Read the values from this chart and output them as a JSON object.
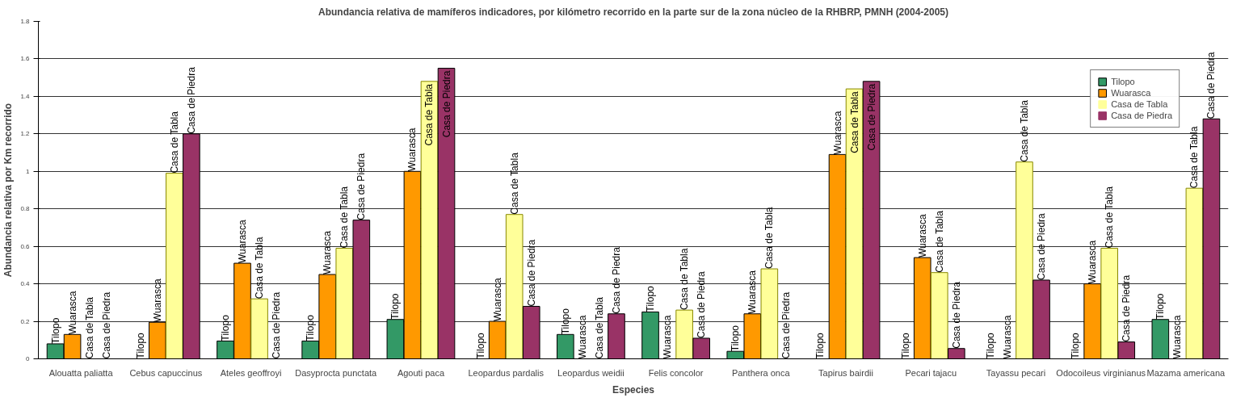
{
  "chart_data": {
    "type": "bar",
    "title": "Abundancia relativa de mamíferos indicadores, por kilómetro recorrido en la parte sur de la zona núcleo de la RHBRP, PMNH (2004-2005)",
    "xlabel": "Especies",
    "ylabel": "Abundancia relativa por Km recorrido",
    "categories": [
      "Alouatta paliatta",
      "Cebus capuccinus",
      "Ateles geoffroyi",
      "Dasyprocta punctata",
      "Agouti paca",
      "Leopardus pardalis",
      "Leopardus weidii",
      "Felis concolor",
      "Panthera onca",
      "Tapirus bairdii",
      "Pecari tajacu",
      "Tayassu pecari",
      "Odocoileus virginianus",
      "Mazama americana"
    ],
    "series": [
      {
        "name": "Tilopo",
        "color": "#339966",
        "values": [
          0.08,
          0,
          0.095,
          0.095,
          0.21,
          0,
          0.13,
          0.25,
          0.04,
          0,
          0,
          0,
          0,
          0.21
        ],
        "value_labels": [
          "Tilopo",
          "Tilopo",
          "Tilopo",
          "Tilopo",
          "Tilopo",
          "Tilopo",
          "Tilopo",
          "Tilopo",
          "Tilopo",
          "Tilopo",
          "Tilopo",
          "Tilopo",
          "Tilopo",
          "Tilopo"
        ]
      },
      {
        "name": "Wuarasca",
        "color": "#ff9900",
        "values": [
          0.13,
          0.195,
          0.51,
          0.45,
          1.0,
          0.2,
          0,
          0,
          0.24,
          1.09,
          0.54,
          0,
          0.4,
          0
        ],
        "value_labels": [
          "Wuarasca",
          "Wuarasca",
          "Wuarasca",
          "Wuarasca",
          "Wuarasca",
          "Wuarasca",
          "Wuarasca",
          "Wuarasca",
          "Wuarasca",
          "Wuarasca",
          "Wuarasca",
          "Wuarasca",
          "Wuarasca",
          "Wuarasca"
        ]
      },
      {
        "name": "Casa de Tabla",
        "color": "#ffff99",
        "values": [
          0,
          0.99,
          0.32,
          0.59,
          1.48,
          0.77,
          0,
          0.26,
          0.48,
          1.44,
          0.46,
          1.05,
          0.59,
          0.91
        ],
        "value_labels": [
          "Casa de Tabla",
          "Casa de Tabla",
          "Casa de Tabla",
          "Casa de Tabla",
          "Casa de Tabla",
          "Casa de Tabla",
          "Casa de Tabla",
          "Casa de Tabla",
          "Casa de Tabla",
          "Casa de Tabla",
          "Casa de Tabla",
          "Casa de Tabla",
          "Casa de Tabla",
          "Casa de Tabla"
        ]
      },
      {
        "name": "Casa de Piedra",
        "color": "#993366",
        "values": [
          0,
          1.2,
          0,
          0.74,
          1.55,
          0.28,
          0.24,
          0.11,
          0,
          1.48,
          0.055,
          0.42,
          0.09,
          1.28
        ],
        "value_labels": [
          "Casa de Piedra",
          "Casa de Piedra",
          "Casa de Piedra",
          "Casa de Piedra",
          "Casa de Piedra",
          "Casa de Piedra",
          "Casa de Piedra",
          "Casa de Piedra",
          "Casa de Piedra",
          "Casa de Piedra",
          "Casa de Piedra",
          "Casa de Piedra",
          "Casa de Piedra",
          "Casa de Piedra"
        ]
      }
    ],
    "ylim": [
      0,
      1.8
    ],
    "yticks": [
      0,
      0.2,
      0.4,
      0.6,
      0.8,
      1,
      1.2,
      1.4,
      1.6,
      1.8
    ],
    "grid": "y",
    "legend": "top right"
  }
}
